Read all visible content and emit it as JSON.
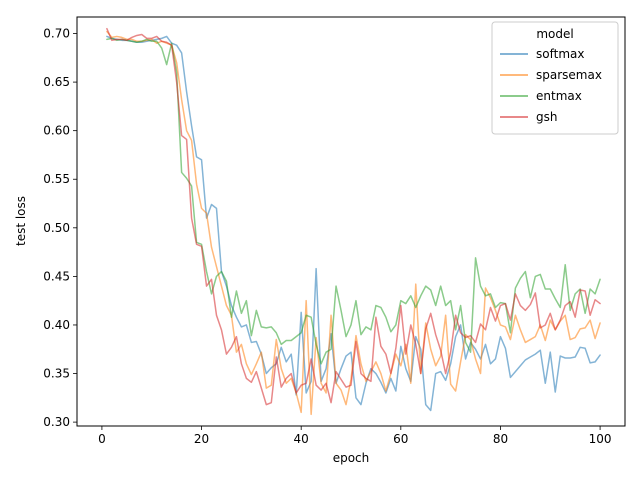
{
  "chart_data": {
    "type": "line",
    "title": "",
    "xlabel": "epoch",
    "ylabel": "test loss",
    "xlim": [
      -5,
      105
    ],
    "ylim": [
      0.296,
      0.717
    ],
    "xticks": [
      0,
      20,
      40,
      60,
      80,
      100
    ],
    "xtick_labels": [
      "0",
      "20",
      "40",
      "60",
      "80",
      "100"
    ],
    "yticks": [
      0.3,
      0.35,
      0.4,
      0.45,
      0.5,
      0.55,
      0.6,
      0.65,
      0.7
    ],
    "ytick_labels": [
      "0.30",
      "0.35",
      "0.40",
      "0.45",
      "0.50",
      "0.55",
      "0.60",
      "0.65",
      "0.70"
    ],
    "grid": false,
    "legend": {
      "title": "model",
      "placement": "upper right"
    },
    "line_opacity": 0.55,
    "x": [
      1,
      2,
      3,
      4,
      5,
      6,
      7,
      8,
      9,
      10,
      11,
      12,
      13,
      14,
      15,
      16,
      17,
      18,
      19,
      20,
      21,
      22,
      23,
      24,
      25,
      26,
      27,
      28,
      29,
      30,
      31,
      32,
      33,
      34,
      35,
      36,
      37,
      38,
      39,
      40,
      41,
      42,
      43,
      44,
      45,
      46,
      47,
      48,
      49,
      50,
      51,
      52,
      53,
      54,
      55,
      56,
      57,
      58,
      59,
      60,
      61,
      62,
      63,
      64,
      65,
      66,
      67,
      68,
      69,
      70,
      71,
      72,
      73,
      74,
      75,
      76,
      77,
      78,
      79,
      80,
      81,
      82,
      83,
      84,
      85,
      86,
      87,
      88,
      89,
      90,
      91,
      92,
      93,
      94,
      95,
      96,
      97,
      98,
      99,
      100
    ],
    "series": [
      {
        "name": "softmax",
        "color": "#1f77b4",
        "values": [
          0.697,
          0.695,
          0.694,
          0.693,
          0.693,
          0.692,
          0.691,
          0.691,
          0.692,
          0.693,
          0.694,
          0.695,
          0.697,
          0.69,
          0.688,
          0.68,
          0.64,
          0.605,
          0.573,
          0.57,
          0.51,
          0.524,
          0.52,
          0.455,
          0.44,
          0.42,
          0.408,
          0.398,
          0.4,
          0.382,
          0.383,
          0.37,
          0.35,
          0.356,
          0.36,
          0.377,
          0.362,
          0.37,
          0.328,
          0.413,
          0.33,
          0.342,
          0.458,
          0.342,
          0.355,
          0.391,
          0.34,
          0.355,
          0.368,
          0.372,
          0.325,
          0.318,
          0.34,
          0.355,
          0.35,
          0.341,
          0.33,
          0.345,
          0.332,
          0.378,
          0.355,
          0.342,
          0.388,
          0.375,
          0.318,
          0.312,
          0.35,
          0.352,
          0.343,
          0.36,
          0.388,
          0.4,
          0.365,
          0.382,
          0.375,
          0.365,
          0.38,
          0.36,
          0.365,
          0.388,
          0.376,
          0.346,
          0.352,
          0.358,
          0.364,
          0.367,
          0.37,
          0.374,
          0.34,
          0.372,
          0.331,
          0.368,
          0.366,
          0.366,
          0.367,
          0.377,
          0.376,
          0.361,
          0.362,
          0.369
        ]
      },
      {
        "name": "sparsemax",
        "color": "#ff7f0e",
        "values": [
          0.702,
          0.696,
          0.697,
          0.696,
          0.694,
          0.694,
          0.692,
          0.692,
          0.693,
          0.694,
          0.69,
          0.692,
          0.69,
          0.688,
          0.67,
          0.632,
          0.6,
          0.59,
          0.545,
          0.52,
          0.515,
          0.48,
          0.46,
          0.44,
          0.42,
          0.41,
          0.372,
          0.38,
          0.36,
          0.349,
          0.36,
          0.372,
          0.335,
          0.338,
          0.385,
          0.355,
          0.34,
          0.345,
          0.33,
          0.31,
          0.425,
          0.308,
          0.387,
          0.34,
          0.33,
          0.41,
          0.34,
          0.333,
          0.318,
          0.344,
          0.389,
          0.36,
          0.342,
          0.352,
          0.362,
          0.35,
          0.332,
          0.35,
          0.37,
          0.358,
          0.38,
          0.34,
          0.442,
          0.35,
          0.402,
          0.375,
          0.358,
          0.368,
          0.41,
          0.339,
          0.332,
          0.362,
          0.39,
          0.385,
          0.365,
          0.35,
          0.438,
          0.428,
          0.415,
          0.4,
          0.398,
          0.385,
          0.41,
          0.395,
          0.382,
          0.385,
          0.388,
          0.4,
          0.384,
          0.405,
          0.395,
          0.404,
          0.41,
          0.385,
          0.387,
          0.396,
          0.397,
          0.405,
          0.386,
          0.402
        ]
      },
      {
        "name": "entmax",
        "color": "#2ca02c",
        "values": [
          0.694,
          0.695,
          0.693,
          0.694,
          0.693,
          0.692,
          0.691,
          0.692,
          0.694,
          0.692,
          0.692,
          0.685,
          0.668,
          0.69,
          0.66,
          0.557,
          0.551,
          0.543,
          0.485,
          0.483,
          0.455,
          0.432,
          0.45,
          0.455,
          0.445,
          0.408,
          0.435,
          0.412,
          0.425,
          0.389,
          0.415,
          0.398,
          0.397,
          0.398,
          0.392,
          0.38,
          0.384,
          0.384,
          0.388,
          0.392,
          0.41,
          0.408,
          0.38,
          0.36,
          0.372,
          0.375,
          0.44,
          0.415,
          0.388,
          0.4,
          0.425,
          0.39,
          0.398,
          0.395,
          0.42,
          0.418,
          0.408,
          0.393,
          0.4,
          0.425,
          0.422,
          0.43,
          0.418,
          0.43,
          0.44,
          0.436,
          0.42,
          0.44,
          0.42,
          0.425,
          0.395,
          0.42,
          0.382,
          0.372,
          0.469,
          0.44,
          0.43,
          0.432,
          0.418,
          0.423,
          0.422,
          0.392,
          0.438,
          0.448,
          0.455,
          0.428,
          0.45,
          0.452,
          0.437,
          0.437,
          0.427,
          0.418,
          0.462,
          0.415,
          0.432,
          0.437,
          0.412,
          0.437,
          0.432,
          0.447
        ]
      },
      {
        "name": "gsh",
        "color": "#d62728",
        "values": [
          0.705,
          0.693,
          0.694,
          0.694,
          0.693,
          0.696,
          0.698,
          0.699,
          0.695,
          0.695,
          0.697,
          0.692,
          0.691,
          0.688,
          0.65,
          0.595,
          0.591,
          0.51,
          0.483,
          0.481,
          0.44,
          0.447,
          0.41,
          0.395,
          0.37,
          0.377,
          0.388,
          0.36,
          0.345,
          0.341,
          0.352,
          0.335,
          0.318,
          0.32,
          0.367,
          0.336,
          0.345,
          0.35,
          0.33,
          0.338,
          0.34,
          0.365,
          0.338,
          0.333,
          0.34,
          0.32,
          0.352,
          0.344,
          0.336,
          0.338,
          0.383,
          0.35,
          0.345,
          0.342,
          0.408,
          0.378,
          0.37,
          0.35,
          0.376,
          0.42,
          0.37,
          0.4,
          0.38,
          0.35,
          0.396,
          0.412,
          0.39,
          0.374,
          0.35,
          0.372,
          0.41,
          0.392,
          0.387,
          0.389,
          0.382,
          0.401,
          0.395,
          0.418,
          0.404,
          0.42,
          0.422,
          0.405,
          0.432,
          0.42,
          0.415,
          0.421,
          0.433,
          0.397,
          0.4,
          0.412,
          0.395,
          0.405,
          0.42,
          0.424,
          0.408,
          0.436,
          0.435,
          0.41,
          0.426,
          0.422
        ]
      }
    ]
  }
}
